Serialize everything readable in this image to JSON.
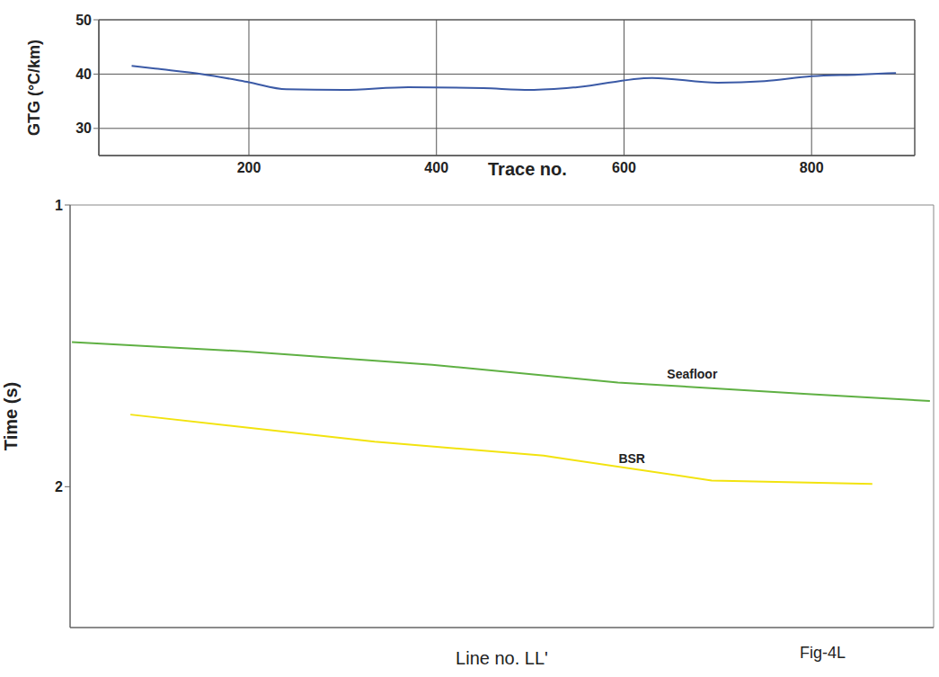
{
  "chart_data": [
    {
      "type": "line",
      "xlabel": "Trace no.",
      "ylabel": "GTG (°C/km)",
      "xlim": [
        40,
        910
      ],
      "xticks": [
        200,
        400,
        600,
        800
      ],
      "ylim": [
        25,
        50
      ],
      "yticks": [
        30,
        40,
        50
      ],
      "grid": true,
      "color": "#3b5aa6",
      "x": [
        75,
        100,
        150,
        200,
        240,
        300,
        370,
        450,
        500,
        550,
        630,
        700,
        750,
        800,
        850,
        890
      ],
      "values": [
        41.5,
        41,
        40,
        38.5,
        37.2,
        37.1,
        37.6,
        37.4,
        37.1,
        37.6,
        39.3,
        38.4,
        38.7,
        39.6,
        39.9,
        40.2
      ]
    },
    {
      "type": "line",
      "ylabel": "Time (s)",
      "xlabel": "Line no. LL'",
      "caption": "Fig-4L",
      "xlim": [
        10,
        940
      ],
      "ylim": [
        2.5,
        1
      ],
      "yticks": [
        1,
        2
      ],
      "tick_labels": "y",
      "series": [
        {
          "color": "#5fb043",
          "x": [
            12,
            200,
            400,
            600,
            700,
            800,
            936
          ],
          "values": [
            1.487,
            1.52,
            1.567,
            1.63,
            1.65,
            1.67,
            1.696
          ]
        },
        {
          "color": "#f2e30f",
          "x": [
            75,
            338,
            520,
            701,
            874
          ],
          "values": [
            1.744,
            1.84,
            1.89,
            1.978,
            1.99
          ]
        }
      ],
      "annotations": [
        {
          "text": "Seafloor",
          "x": 680,
          "y": 1.6
        },
        {
          "text": "BSR",
          "x": 615,
          "y": 1.9
        }
      ]
    }
  ]
}
